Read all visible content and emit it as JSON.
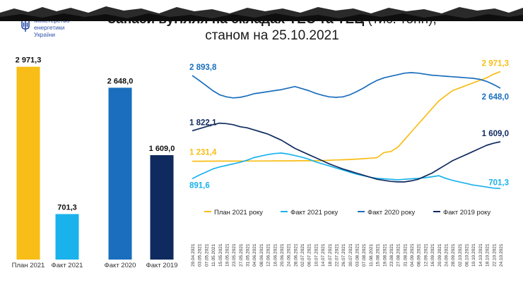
{
  "org": {
    "line1": "Міністерство",
    "line2": "енергетики",
    "line3": "України"
  },
  "title": {
    "bold": "Запаси вугілля на складах ТЕС та ТЕЦ",
    "unit": " (тис. тонн),",
    "line2": "станом на 25.10.2021"
  },
  "colors": {
    "plan2021": "#f8bd16",
    "fact2021": "#1ab2ec",
    "fact2020": "#1a6ebd",
    "fact2019": "#0f2a5e"
  },
  "chart_data": [
    {
      "type": "bar",
      "categories": [
        "План 2021",
        "Факт 2021",
        "Факт 2020",
        "Факт 2019"
      ],
      "values": [
        2971.3,
        701.3,
        2648.0,
        1609.0
      ],
      "value_labels": [
        "2 971,3",
        "701,3",
        "2 648,0",
        "1 609,0"
      ]
    },
    {
      "type": "line",
      "x": [
        "29.04.2021",
        "03.05.2021",
        "07.05.2021",
        "11.05.2021",
        "15.05.2021",
        "19.05.2021",
        "23.05.2021",
        "27.05.2021",
        "31.05.2021",
        "04.06.2021",
        "08.06.2021",
        "12.06.2021",
        "16.06.2021",
        "20.06.2021",
        "24.06.2021",
        "28.06.2021",
        "02.07.2021",
        "06.07.2021",
        "10.07.2021",
        "14.07.2021",
        "18.07.2021",
        "22.07.2021",
        "26.07.2021",
        "30.07.2021",
        "03.08.2021",
        "07.08.2021",
        "11.08.2021",
        "15.08.2021",
        "19.08.2021",
        "23.08.2021",
        "27.08.2021",
        "31.08.2021",
        "04.09.2021",
        "08.09.2021",
        "12.09.2021",
        "16.09.2021",
        "20.09.2021",
        "24.09.2021",
        "28.09.2021",
        "02.10.2021",
        "06.10.2021",
        "10.10.2021",
        "14.10.2021",
        "18.10.2021",
        "22.10.2021",
        "24.10.2021"
      ],
      "ylim": [
        500,
        3100
      ],
      "series": [
        {
          "name": "План 2021 року",
          "start_label": "1 231,4",
          "end_label": "2 971,3",
          "values": [
            1231,
            1231,
            1232,
            1232,
            1233,
            1233,
            1234,
            1234,
            1235,
            1235,
            1236,
            1236,
            1237,
            1237,
            1238,
            1239,
            1240,
            1240,
            1241,
            1245,
            1250,
            1255,
            1260,
            1265,
            1272,
            1280,
            1290,
            1300,
            1400,
            1420,
            1500,
            1650,
            1800,
            1950,
            2100,
            2250,
            2400,
            2500,
            2600,
            2650,
            2700,
            2750,
            2800,
            2850,
            2920,
            2971
          ]
        },
        {
          "name": "Факт 2021 року",
          "start_label": "891,6",
          "end_label": "701,3",
          "values": [
            892,
            960,
            1020,
            1080,
            1120,
            1150,
            1180,
            1210,
            1250,
            1300,
            1330,
            1360,
            1380,
            1390,
            1370,
            1340,
            1310,
            1270,
            1220,
            1180,
            1140,
            1100,
            1060,
            1020,
            980,
            950,
            920,
            900,
            890,
            880,
            870,
            880,
            890,
            900,
            910,
            930,
            950,
            900,
            860,
            830,
            800,
            770,
            750,
            730,
            710,
            701
          ]
        },
        {
          "name": "Факт 2020 року",
          "start_label": "2 893,8",
          "end_label": "2 648,0",
          "values": [
            2894,
            2800,
            2700,
            2600,
            2520,
            2480,
            2460,
            2470,
            2500,
            2540,
            2560,
            2580,
            2600,
            2620,
            2650,
            2680,
            2640,
            2600,
            2550,
            2510,
            2480,
            2470,
            2480,
            2520,
            2580,
            2650,
            2730,
            2800,
            2850,
            2880,
            2910,
            2940,
            2950,
            2940,
            2920,
            2900,
            2890,
            2880,
            2870,
            2860,
            2850,
            2840,
            2820,
            2780,
            2720,
            2648
          ]
        },
        {
          "name": "Факт 2019 року",
          "start_label": "1 822,1",
          "end_label": "1 609,0",
          "values": [
            1822,
            1860,
            1900,
            1940,
            1970,
            1960,
            1940,
            1900,
            1880,
            1840,
            1800,
            1760,
            1700,
            1640,
            1560,
            1480,
            1420,
            1360,
            1300,
            1240,
            1180,
            1130,
            1080,
            1040,
            1000,
            960,
            920,
            880,
            860,
            840,
            830,
            830,
            850,
            880,
            940,
            1000,
            1080,
            1160,
            1240,
            1300,
            1360,
            1420,
            1480,
            1540,
            1580,
            1609
          ]
        }
      ]
    }
  ]
}
